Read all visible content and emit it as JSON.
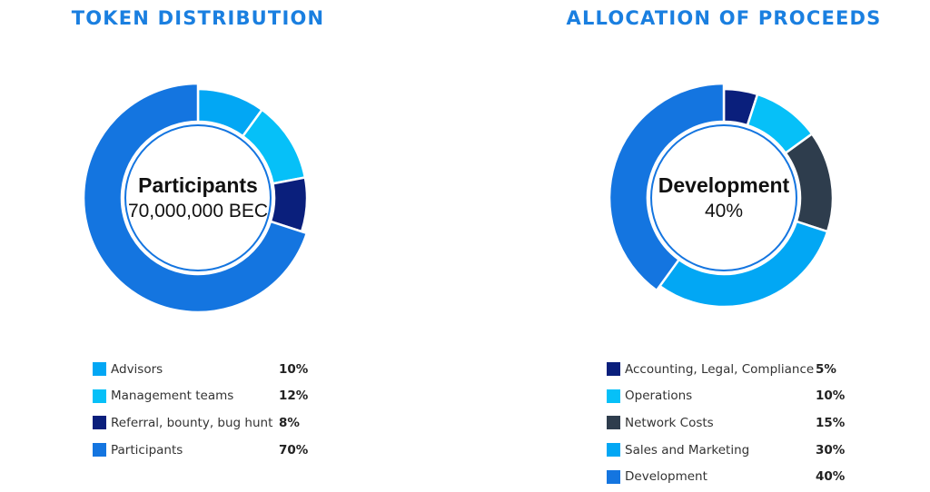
{
  "chart_data": [
    {
      "type": "pie",
      "title": "TOKEN DISTRIBUTION",
      "center": {
        "label": "Participants",
        "value": "70,000,000 BEC"
      },
      "slices": [
        {
          "label": "Advisors",
          "value": 10,
          "display": "10%",
          "color": "#02a7f4"
        },
        {
          "label": "Management teams",
          "value": 12,
          "display": "12%",
          "color": "#06c0f8"
        },
        {
          "label": "Referral, bounty, bug hunt",
          "value": 8,
          "display": "8%",
          "color": "#0a1f7c"
        },
        {
          "label": "Participants",
          "value": 70,
          "display": "70%",
          "color": "#1475e0"
        }
      ]
    },
    {
      "type": "pie",
      "title": "ALLOCATION OF PROCEEDS",
      "center": {
        "label": "Development",
        "value": "40%"
      },
      "slices": [
        {
          "label": "Accounting, Legal, Compliance",
          "value": 5,
          "display": "5%",
          "color": "#0a1f7c"
        },
        {
          "label": "Operations",
          "value": 10,
          "display": "10%",
          "color": "#06c0f8"
        },
        {
          "label": "Network Costs",
          "value": 15,
          "display": "15%",
          "color": "#2e3d4d"
        },
        {
          "label": "Sales and Marketing",
          "value": 30,
          "display": "30%",
          "color": "#02a7f4"
        },
        {
          "label": "Development",
          "value": 40,
          "display": "40%",
          "color": "#1475e0"
        }
      ]
    }
  ]
}
